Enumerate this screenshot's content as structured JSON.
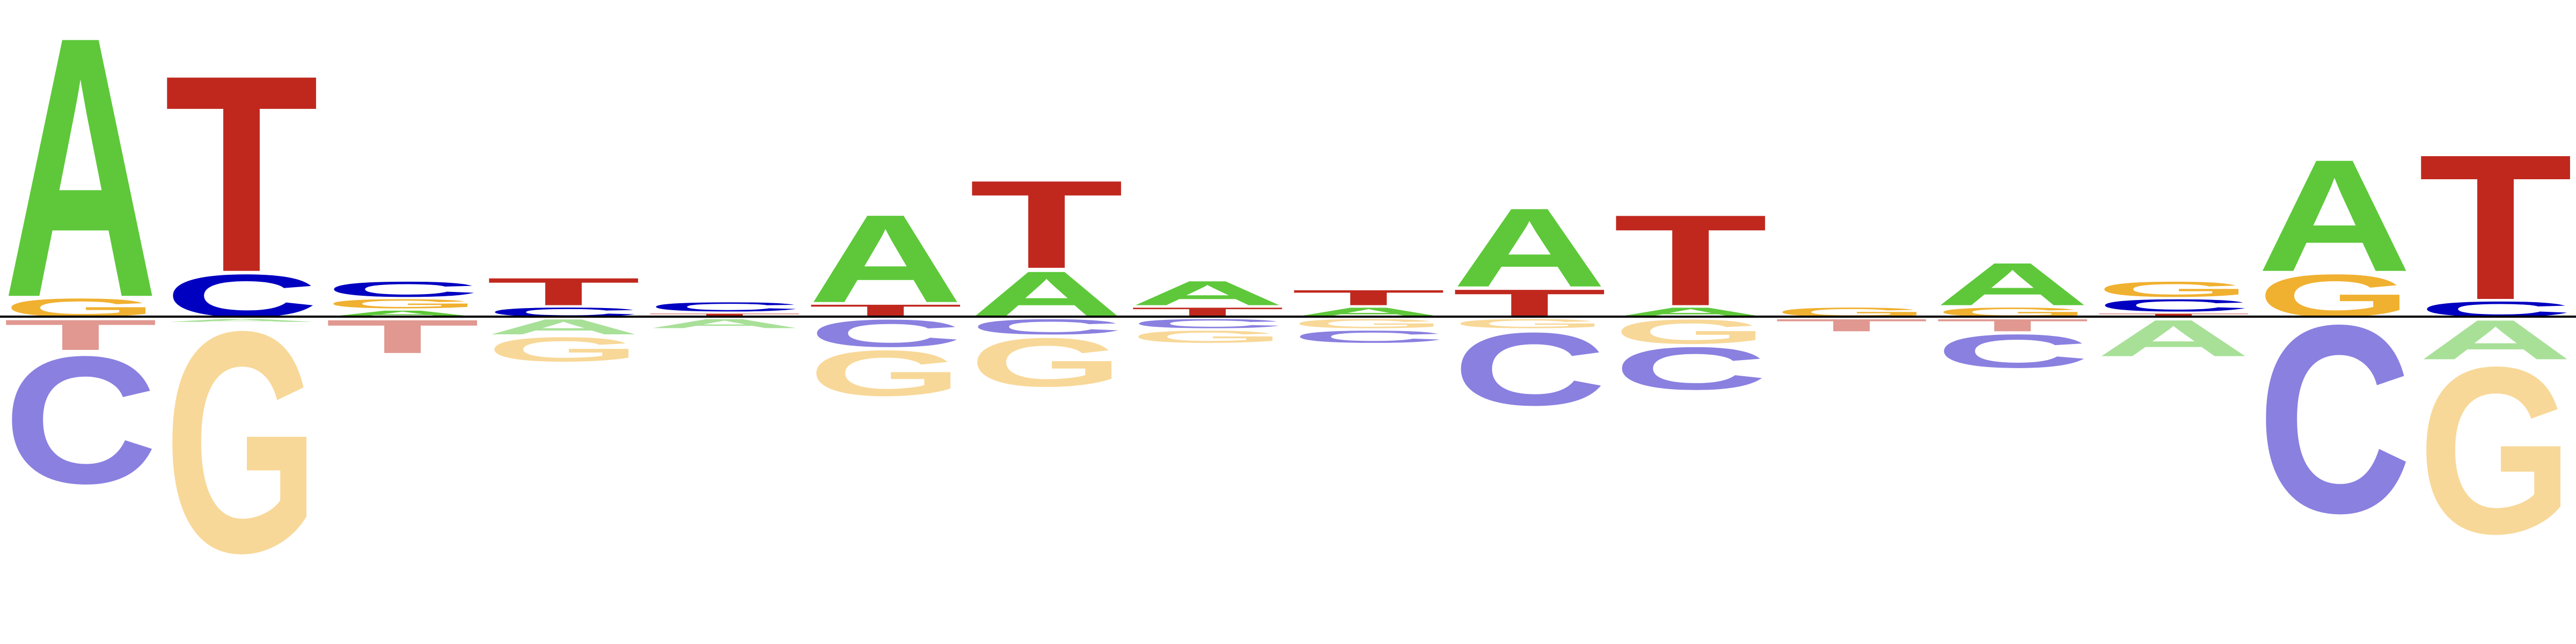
{
  "colors": {
    "A_up": "#5ec83a",
    "C_up": "#0000c0",
    "G_up": "#f0b030",
    "T_up": "#c0281e",
    "A_down": "#a8e098",
    "C_down": "#8a80e0",
    "G_down": "#f8d898",
    "T_down": "#e09890",
    "baseline": "#000000"
  },
  "positions": [
    {
      "up": [
        {
          "base": "G",
          "value": 0.06
        },
        {
          "base": "A",
          "value": 0.86
        }
      ],
      "down": [
        {
          "base": "T",
          "value": 0.1
        },
        {
          "base": "C",
          "value": 0.42
        }
      ]
    },
    {
      "up": [
        {
          "base": "C",
          "value": 0.14
        },
        {
          "base": "T",
          "value": 0.65
        }
      ],
      "down": [
        {
          "base": "A",
          "value": 0.01
        },
        {
          "base": "G",
          "value": 0.73
        }
      ]
    },
    {
      "up": [
        {
          "base": "A",
          "value": 0.02
        },
        {
          "base": "G",
          "value": 0.03
        },
        {
          "base": "C",
          "value": 0.05
        }
      ],
      "down": [
        {
          "base": "T",
          "value": 0.11
        }
      ]
    },
    {
      "up": [
        {
          "base": "C",
          "value": 0.03
        },
        {
          "base": "T",
          "value": 0.09
        }
      ],
      "down": [
        {
          "base": "A",
          "value": 0.05
        },
        {
          "base": "G",
          "value": 0.08
        }
      ]
    },
    {
      "up": [
        {
          "base": "T",
          "value": 0.01
        },
        {
          "base": "C",
          "value": 0.03
        }
      ],
      "down": [
        {
          "base": "A",
          "value": 0.03
        }
      ]
    },
    {
      "up": [
        {
          "base": "T",
          "value": 0.04
        },
        {
          "base": "A",
          "value": 0.29
        }
      ],
      "down": [
        {
          "base": "C",
          "value": 0.09
        },
        {
          "base": "G",
          "value": 0.15
        }
      ]
    },
    {
      "up": [
        {
          "base": "A",
          "value": 0.15
        },
        {
          "base": "T",
          "value": 0.29
        }
      ],
      "down": [
        {
          "base": "C",
          "value": 0.05
        },
        {
          "base": "G",
          "value": 0.16
        }
      ]
    },
    {
      "up": [
        {
          "base": "T",
          "value": 0.03
        },
        {
          "base": "A",
          "value": 0.08
        }
      ],
      "down": [
        {
          "base": "C",
          "value": 0.03
        },
        {
          "base": "G",
          "value": 0.04
        }
      ]
    },
    {
      "up": [
        {
          "base": "A",
          "value": 0.03
        },
        {
          "base": "T",
          "value": 0.05
        }
      ],
      "down": [
        {
          "base": "G",
          "value": 0.03
        },
        {
          "base": "C",
          "value": 0.04
        }
      ]
    },
    {
      "up": [
        {
          "base": "T",
          "value": 0.09
        },
        {
          "base": "A",
          "value": 0.26
        }
      ],
      "down": [
        {
          "base": "G",
          "value": 0.03
        },
        {
          "base": "C",
          "value": 0.24
        }
      ]
    },
    {
      "up": [
        {
          "base": "A",
          "value": 0.03
        },
        {
          "base": "T",
          "value": 0.3
        }
      ],
      "down": [
        {
          "base": "G",
          "value": 0.08
        },
        {
          "base": "C",
          "value": 0.14
        }
      ]
    },
    {
      "up": [
        {
          "base": "G",
          "value": 0.03
        }
      ],
      "down": [
        {
          "base": "T",
          "value": 0.04
        }
      ]
    },
    {
      "up": [
        {
          "base": "G",
          "value": 0.03
        },
        {
          "base": "A",
          "value": 0.14
        }
      ],
      "down": [
        {
          "base": "T",
          "value": 0.04
        },
        {
          "base": "C",
          "value": 0.11
        }
      ]
    },
    {
      "up": [
        {
          "base": "T",
          "value": 0.01
        },
        {
          "base": "C",
          "value": 0.04
        },
        {
          "base": "G",
          "value": 0.05
        }
      ],
      "down": [
        {
          "base": "A",
          "value": 0.12
        }
      ]
    },
    {
      "up": [
        {
          "base": "G",
          "value": 0.14
        },
        {
          "base": "A",
          "value": 0.37
        }
      ],
      "down": [
        {
          "base": "C",
          "value": 0.62
        }
      ]
    },
    {
      "up": [
        {
          "base": "C",
          "value": 0.05
        },
        {
          "base": "T",
          "value": 0.48
        }
      ],
      "down": [
        {
          "base": "A",
          "value": 0.13
        },
        {
          "base": "G",
          "value": 0.55
        }
      ]
    }
  ]
}
